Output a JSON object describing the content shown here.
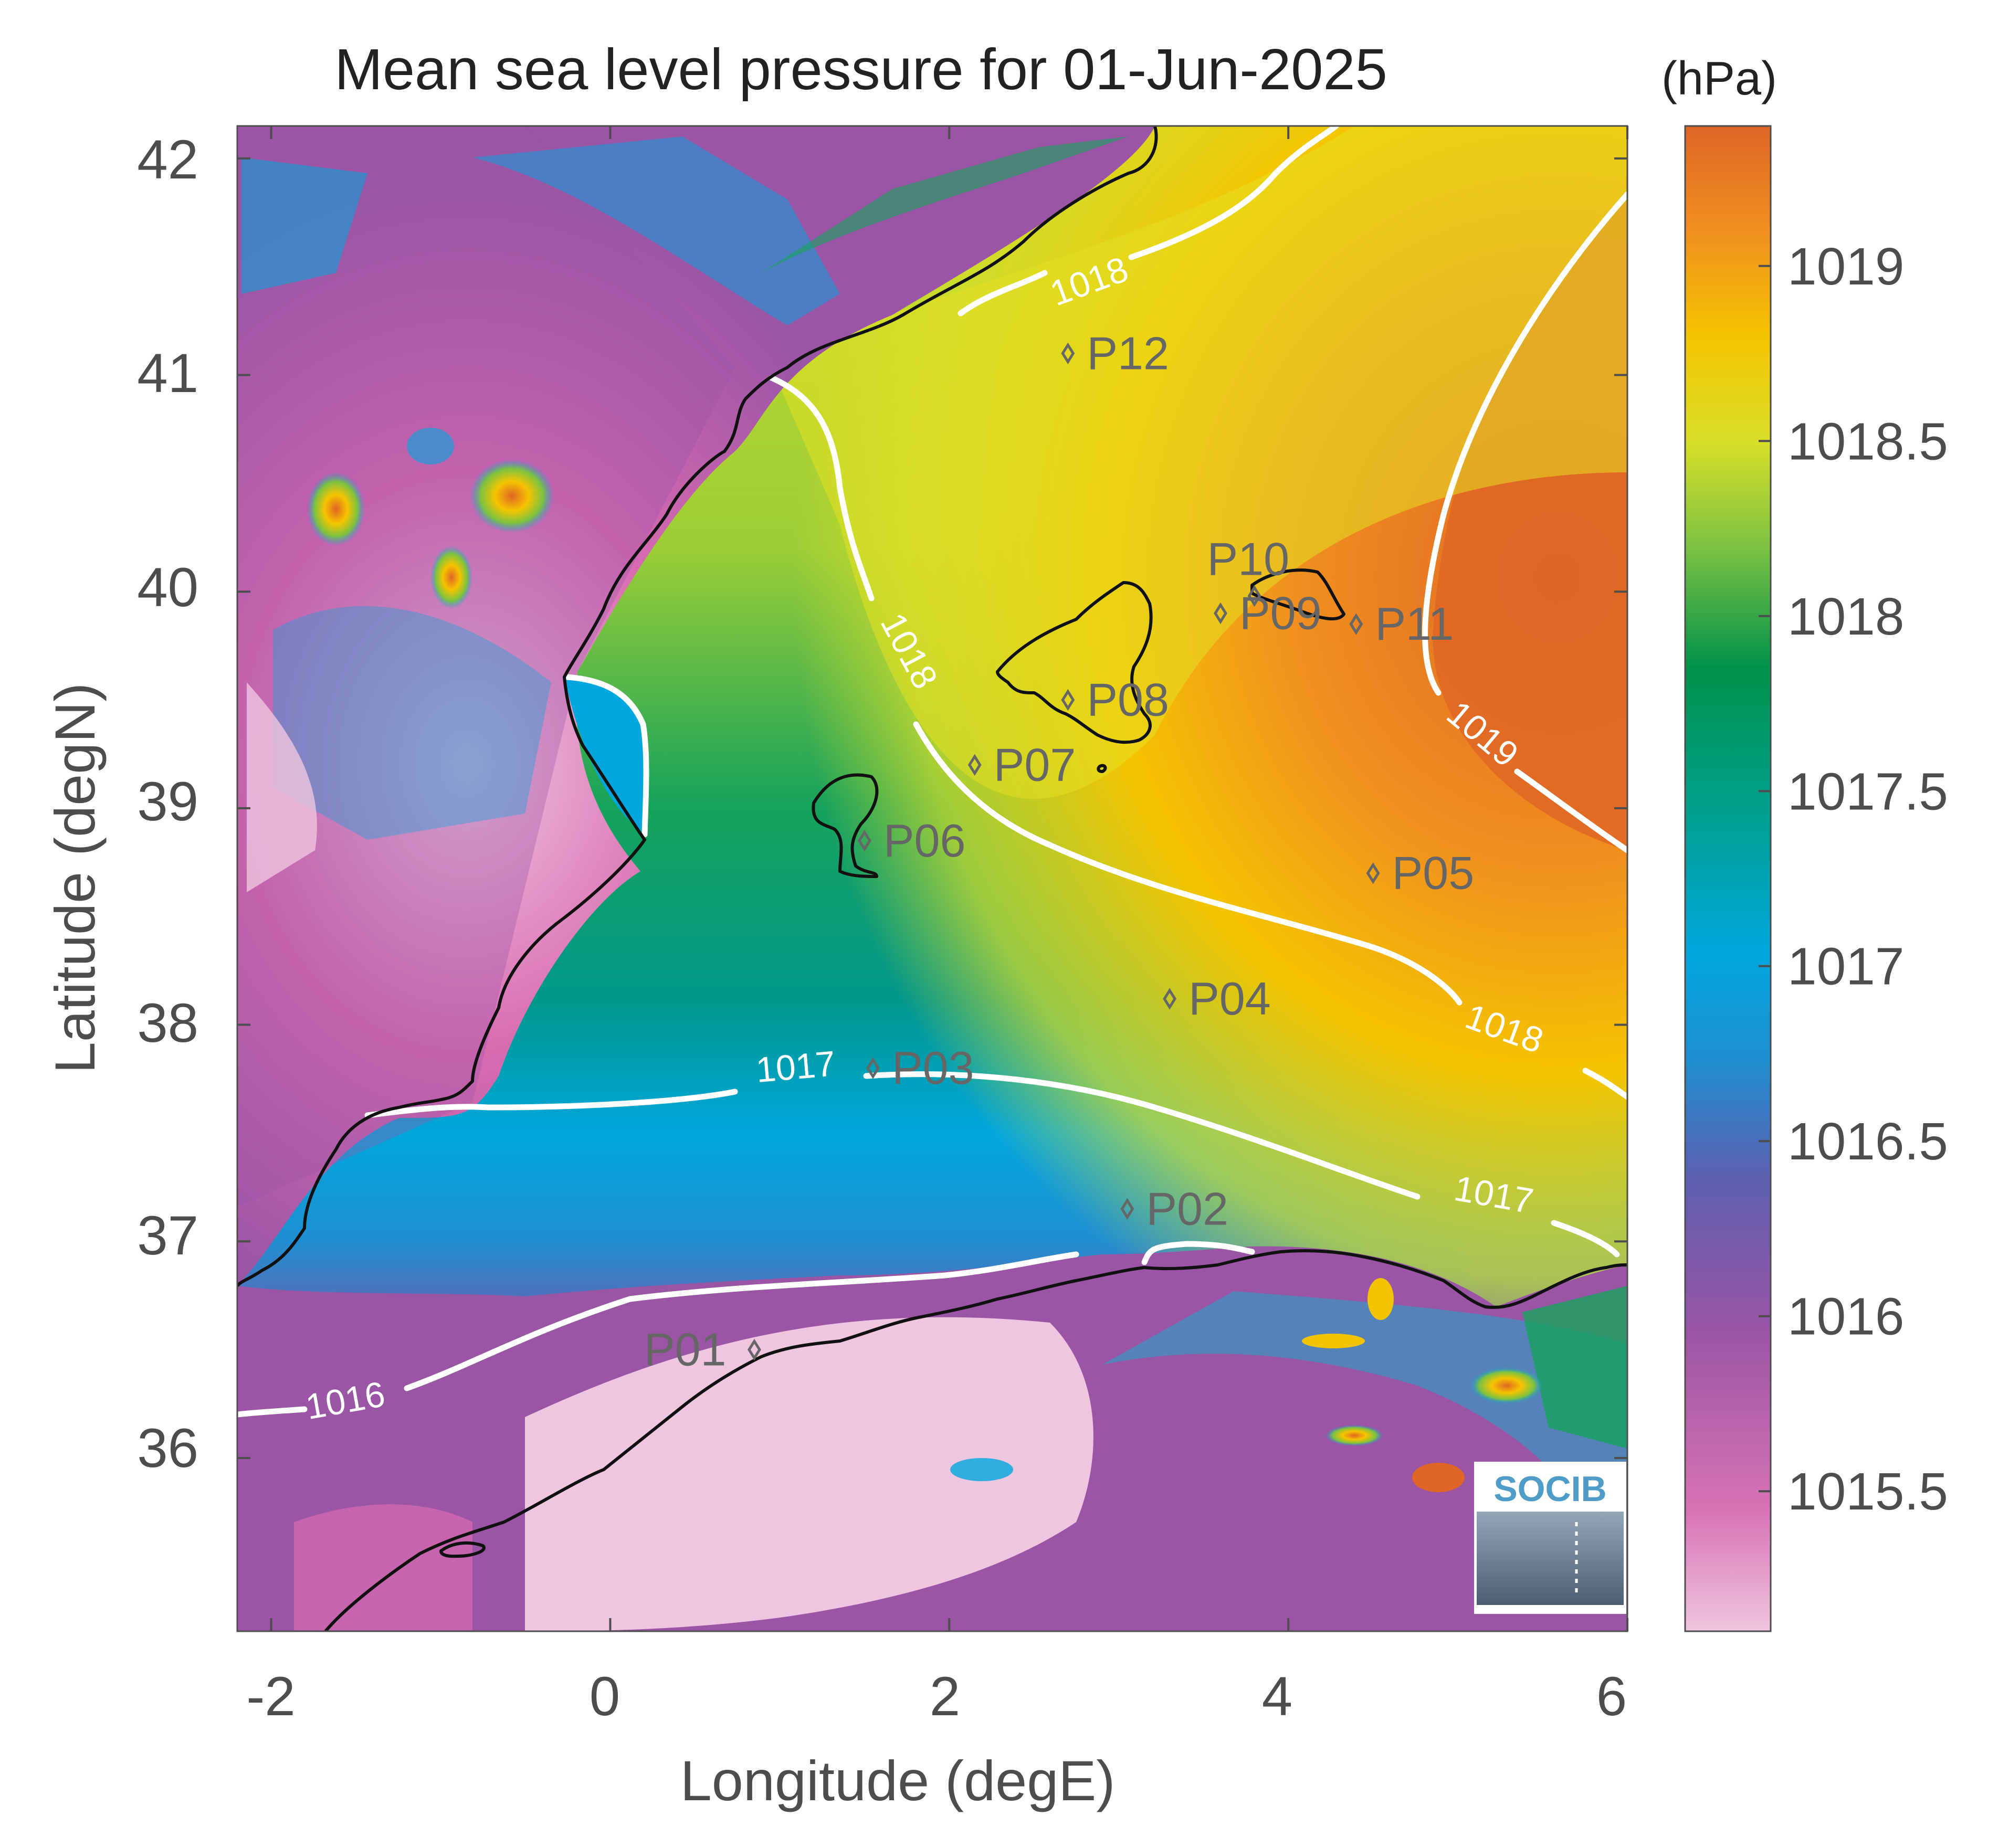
{
  "title": "Mean sea level pressure for 01-Jun-2025",
  "units_label": "(hPa)",
  "xlabel": "Longitude (degE)",
  "ylabel": "Latitude (degN)",
  "x_ticks": [
    "-2",
    "0",
    "2",
    "4",
    "6"
  ],
  "y_ticks": [
    "42",
    "41",
    "40",
    "39",
    "38",
    "37",
    "36"
  ],
  "colorbar_ticks": [
    "1019",
    "1018.5",
    "1018",
    "1017.5",
    "1017",
    "1016.5",
    "1016",
    "1015.5"
  ],
  "logo_text": "SOCIB",
  "contour_labels": [
    {
      "text": "1018",
      "lon": 2.85,
      "lat": 41.38
    },
    {
      "text": "1018",
      "lon": 1.7,
      "lat": 39.7
    },
    {
      "text": "1019",
      "lon": 5.1,
      "lat": 39.3
    },
    {
      "text": "1018",
      "lon": 5.25,
      "lat": 37.93
    },
    {
      "text": "1017",
      "lon": 1.1,
      "lat": 37.75
    },
    {
      "text": "1017",
      "lon": 5.2,
      "lat": 37.16
    },
    {
      "text": "1016",
      "lon": -1.55,
      "lat": 36.21
    }
  ],
  "stations": [
    {
      "label": "P01",
      "lon": 0.85,
      "lat": 36.5
    },
    {
      "label": "P02",
      "lon": 3.05,
      "lat": 37.15
    },
    {
      "label": "P03",
      "lon": 1.55,
      "lat": 37.8
    },
    {
      "label": "P04",
      "lon": 3.3,
      "lat": 38.12
    },
    {
      "label": "P05",
      "lon": 4.5,
      "lat": 38.7
    },
    {
      "label": "P06",
      "lon": 1.5,
      "lat": 38.85
    },
    {
      "label": "P07",
      "lon": 2.15,
      "lat": 39.2
    },
    {
      "label": "P08",
      "lon": 2.7,
      "lat": 39.5
    },
    {
      "label": "P09",
      "lon": 3.6,
      "lat": 39.9
    },
    {
      "label": "P10",
      "lon": 3.8,
      "lat": 39.98
    },
    {
      "label": "P11",
      "lon": 4.4,
      "lat": 39.85
    },
    {
      "label": "P12",
      "lon": 2.7,
      "lat": 41.1
    }
  ],
  "colors": {
    "coastline": "#111111",
    "contour": "#ffffff",
    "station": "#666666",
    "text": "#4d4d4d"
  }
}
